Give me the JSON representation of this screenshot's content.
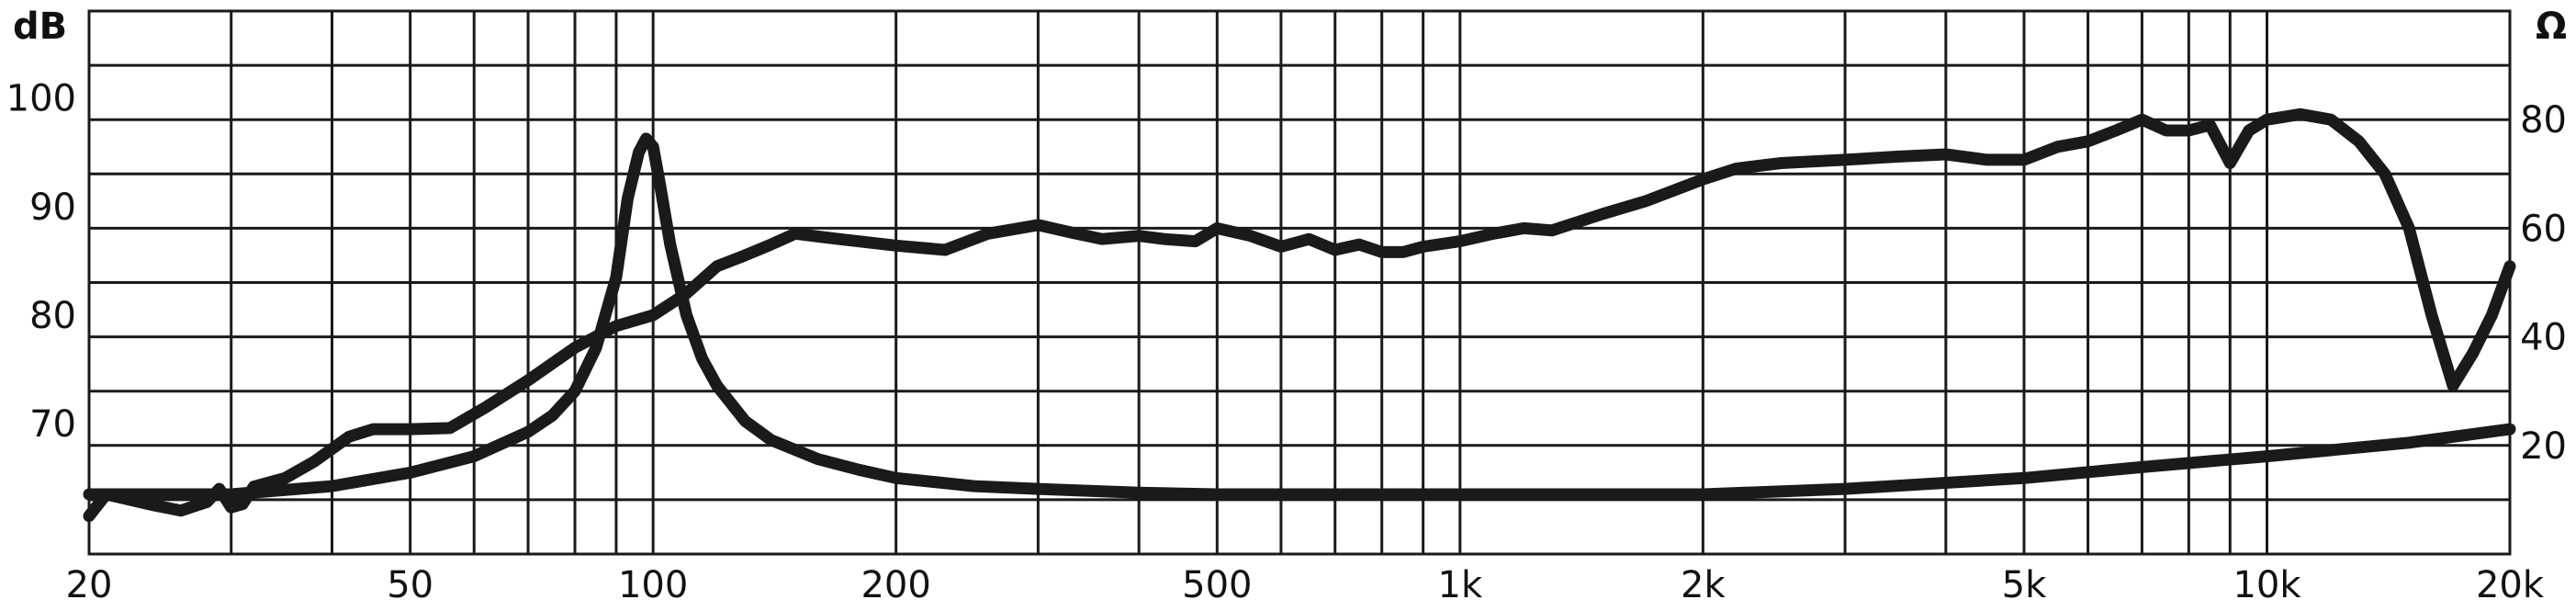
{
  "chart_data": {
    "type": "line",
    "x_scale": "log",
    "xlim": [
      20,
      20000
    ],
    "x_ticks": [
      {
        "value": 20,
        "label": "20"
      },
      {
        "value": 50,
        "label": "50"
      },
      {
        "value": 100,
        "label": "100"
      },
      {
        "value": 200,
        "label": "200"
      },
      {
        "value": 500,
        "label": "500"
      },
      {
        "value": 1000,
        "label": "1k"
      },
      {
        "value": 2000,
        "label": "2k"
      },
      {
        "value": 5000,
        "label": "5k"
      },
      {
        "value": 10000,
        "label": "10k"
      },
      {
        "value": 20000,
        "label": "20k"
      }
    ],
    "left_axis": {
      "unit": "dB",
      "ylim": [
        58,
        108
      ],
      "ticks": [
        {
          "value": 100,
          "label": "100"
        },
        {
          "value": 90,
          "label": "90"
        },
        {
          "value": 80,
          "label": "80"
        },
        {
          "value": 70,
          "label": "70"
        }
      ]
    },
    "right_axis": {
      "unit": "Ω",
      "ylim": [
        0,
        100
      ],
      "ticks": [
        {
          "value": 80,
          "label": "80"
        },
        {
          "value": 60,
          "label": "60"
        },
        {
          "value": 40,
          "label": "40"
        },
        {
          "value": 20,
          "label": "20"
        }
      ]
    },
    "grid": true,
    "series": [
      {
        "axis": "left",
        "x": [
          20,
          21,
          24,
          26,
          28,
          29,
          30,
          31,
          32,
          35,
          38,
          42,
          45,
          50,
          56,
          62,
          70,
          80,
          90,
          100,
          110,
          120,
          130,
          140,
          150,
          170,
          200,
          230,
          260,
          300,
          330,
          360,
          400,
          430,
          470,
          500,
          550,
          600,
          650,
          700,
          750,
          800,
          850,
          900,
          1000,
          1100,
          1200,
          1300,
          1500,
          1700,
          2000,
          2200,
          2500,
          3000,
          3500,
          4000,
          4500,
          5000,
          5500,
          6000,
          6500,
          7000,
          7500,
          8000,
          8500,
          9000,
          9500,
          10000,
          11000,
          12000,
          13000,
          14000,
          15000,
          16000,
          17000,
          18000,
          19000,
          20000
        ],
        "values": [
          61.5,
          63.5,
          62.5,
          62.0,
          62.8,
          64.0,
          62.3,
          62.6,
          64.2,
          65.0,
          66.5,
          68.8,
          69.5,
          69.5,
          69.6,
          71.5,
          74.0,
          77.0,
          79.0,
          80.0,
          82.0,
          84.5,
          85.5,
          86.5,
          87.5,
          87.0,
          86.4,
          86.0,
          87.5,
          88.3,
          87.6,
          87.0,
          87.3,
          87.0,
          86.8,
          88.0,
          87.3,
          86.3,
          87.0,
          86.0,
          86.5,
          85.8,
          85.8,
          86.3,
          86.8,
          87.5,
          88.0,
          87.8,
          89.3,
          90.5,
          92.5,
          93.5,
          94.0,
          94.3,
          94.6,
          94.8,
          94.3,
          94.3,
          95.5,
          96.0,
          97.0,
          98.0,
          97.0,
          97.0,
          97.5,
          94.0,
          97.0,
          98.0,
          98.5,
          98.0,
          96.0,
          93.0,
          88.0,
          80.0,
          73.5,
          76.5,
          80.0,
          84.5
        ]
      },
      {
        "axis": "right",
        "x": [
          20,
          30,
          40,
          50,
          60,
          70,
          75,
          80,
          85,
          90,
          93,
          96,
          98,
          100,
          102,
          105,
          110,
          115,
          120,
          130,
          140,
          160,
          180,
          200,
          250,
          300,
          400,
          500,
          700,
          1000,
          2000,
          3000,
          5000,
          7000,
          10000,
          15000,
          20000
        ],
        "values": [
          11.0,
          11.0,
          12.5,
          15.0,
          18.0,
          22.5,
          25.5,
          30.0,
          38.0,
          51.0,
          65.5,
          74.0,
          76.5,
          75.0,
          68.0,
          57.0,
          44.0,
          36.0,
          31.0,
          24.5,
          21.0,
          17.5,
          15.5,
          14.0,
          12.5,
          12.0,
          11.3,
          11.0,
          11.0,
          11.0,
          11.0,
          12.0,
          14.0,
          16.0,
          18.0,
          20.5,
          23.0
        ]
      }
    ]
  }
}
